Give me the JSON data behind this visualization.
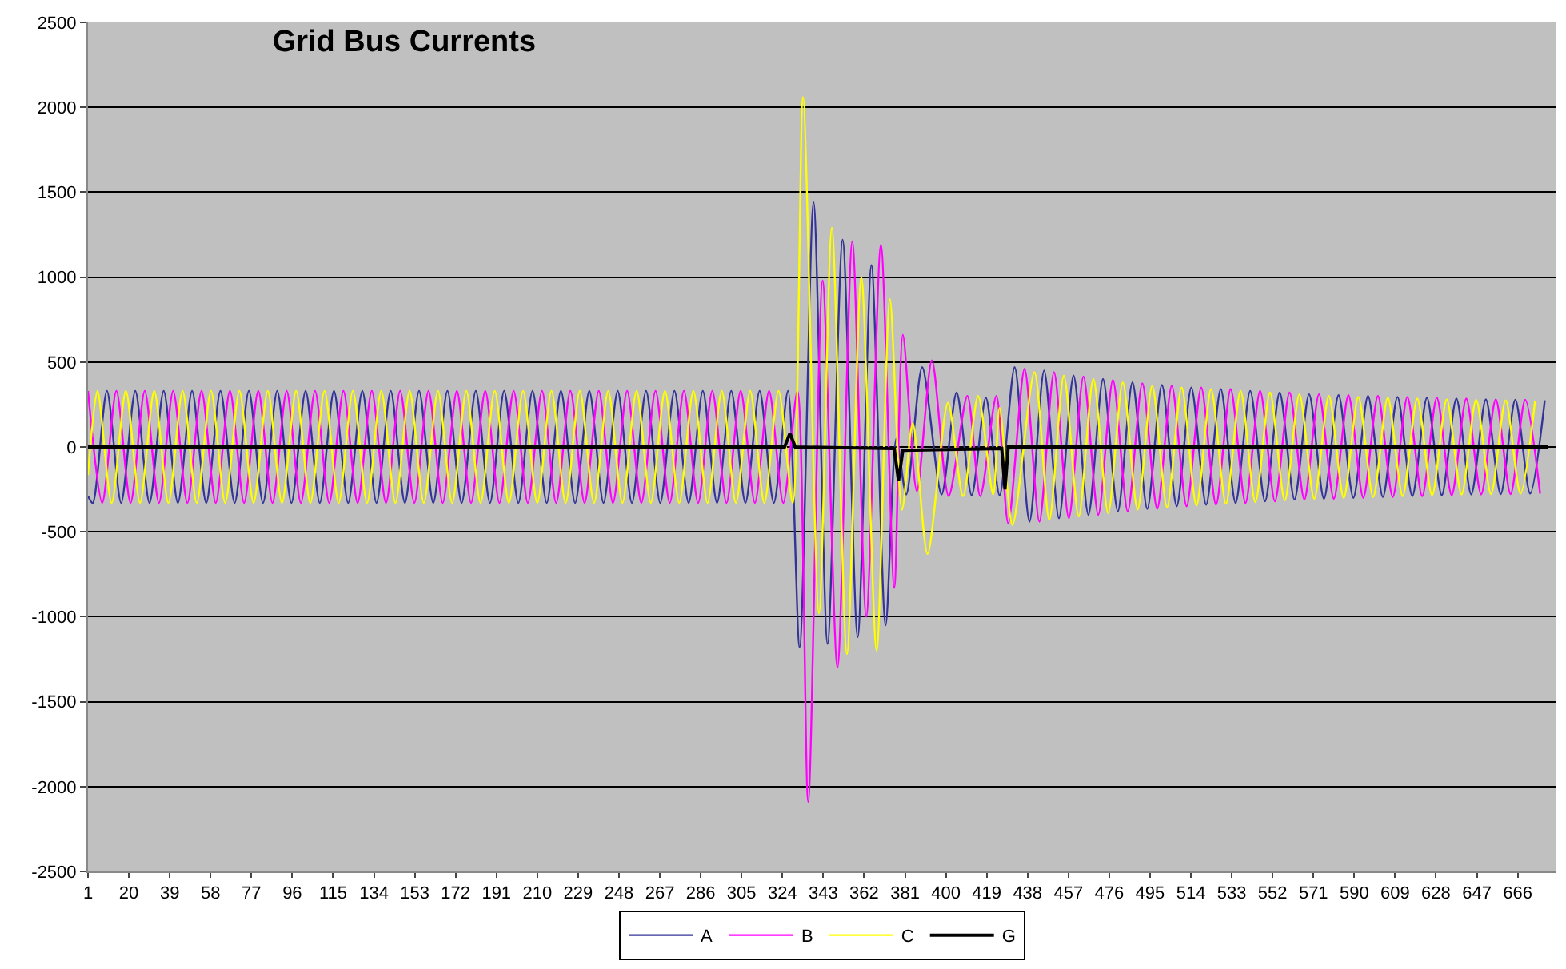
{
  "chart_data": {
    "type": "line",
    "title": "Grid Bus Currents",
    "xlim": [
      1,
      684
    ],
    "ylim": [
      -2500,
      2500
    ],
    "xticks": [
      1,
      20,
      39,
      58,
      77,
      96,
      115,
      134,
      153,
      172,
      191,
      210,
      229,
      248,
      267,
      286,
      305,
      324,
      343,
      362,
      381,
      400,
      419,
      438,
      457,
      476,
      495,
      514,
      533,
      552,
      571,
      590,
      609,
      628,
      647,
      666
    ],
    "yticks": [
      -2500,
      -2000,
      -1500,
      -1000,
      -500,
      0,
      500,
      1000,
      1500,
      2000,
      2500
    ],
    "grid": "y",
    "legend": "bottom",
    "series": [
      {
        "name": "A",
        "color": "#333399",
        "x": [
          1,
          3.2,
          9.8,
          16.4,
          23,
          29.6,
          36.2,
          42.8,
          49.4,
          56,
          62.6,
          69.2,
          75.8,
          82.4,
          89,
          95.6,
          102.2,
          108.8,
          115.4,
          122,
          128.6,
          135.2,
          141.8,
          148.4,
          155,
          161.6,
          168.2,
          174.8,
          181.4,
          188,
          194.6,
          201.2,
          207.8,
          214.4,
          221,
          227.6,
          234.2,
          240.8,
          247.4,
          254,
          260.6,
          267.2,
          273.8,
          280.4,
          287,
          293.6,
          300.2,
          306.8,
          313.4,
          320,
          326.6,
          332,
          338.5,
          345,
          352,
          359,
          365.4,
          372,
          377,
          381.6,
          389,
          398,
          405,
          412,
          418.6,
          425,
          432,
          438.9,
          445.7,
          452.6,
          459.4,
          466.3,
          473.1,
          480,
          486.8,
          493.7,
          500.5,
          507.4,
          514.2,
          521.1,
          527.9,
          534.8,
          541.6,
          548.5,
          555.3,
          562.2,
          569,
          575.9,
          582.7,
          589.6,
          596.4,
          603.3,
          610.1,
          617,
          623.8,
          630.7,
          637.5,
          644.4,
          651.2,
          658.1,
          664.9,
          671.8,
          678.6
        ],
        "values": [
          -290,
          -330,
          330,
          -330,
          330,
          -330,
          330,
          -330,
          330,
          -330,
          330,
          -330,
          330,
          -330,
          330,
          -330,
          330,
          -330,
          330,
          -330,
          330,
          -330,
          330,
          -330,
          330,
          -330,
          330,
          -330,
          330,
          -330,
          330,
          -330,
          330,
          -330,
          330,
          -330,
          330,
          -330,
          330,
          -330,
          330,
          -330,
          330,
          -330,
          330,
          -330,
          330,
          -330,
          330,
          -330,
          330,
          -1180,
          1440,
          -1160,
          1220,
          -1120,
          1070,
          -1050,
          50,
          -280,
          470,
          -280,
          320,
          -285,
          290,
          -285,
          470,
          -440,
          450,
          -420,
          420,
          -400,
          400,
          -380,
          380,
          -365,
          365,
          -350,
          350,
          -340,
          340,
          -330,
          330,
          -320,
          320,
          -310,
          310,
          -305,
          305,
          -300,
          300,
          -295,
          295,
          -290,
          290,
          -285,
          285,
          -280,
          280,
          -278,
          278,
          -275,
          275
        ]
      },
      {
        "name": "B",
        "color": "#ff00ff",
        "x": [
          1,
          7.6,
          14.2,
          20.8,
          27.4,
          34,
          40.6,
          47.2,
          53.8,
          60.4,
          67,
          73.6,
          80.2,
          86.8,
          93.4,
          100,
          106.6,
          113.2,
          119.8,
          126.4,
          133,
          139.6,
          146.2,
          152.8,
          159.4,
          166,
          172.6,
          179.2,
          185.8,
          192.4,
          199,
          205.6,
          212.2,
          218.8,
          225.4,
          232,
          238.6,
          245.2,
          251.8,
          258.4,
          265,
          271.6,
          278.2,
          284.8,
          291.4,
          298,
          304.6,
          311.2,
          317.8,
          324.4,
          331,
          336,
          342.7,
          349.6,
          356.5,
          363,
          369.8,
          376,
          380,
          386.5,
          393.5,
          401.3,
          410,
          416,
          423.5,
          429,
          436.6,
          443.5,
          450.3,
          457.2,
          464,
          470.9,
          477.7,
          484.6,
          491.4,
          498.3,
          505.1,
          512,
          518.8,
          525.7,
          532.5,
          539.4,
          546.2,
          553.1,
          559.9,
          566.8,
          573.6,
          580.5,
          587.3,
          594.2,
          601,
          607.9,
          614.7,
          621.6,
          628.4,
          635.3,
          642.1,
          649,
          655.8,
          662.7,
          669.5,
          676.4
        ],
        "values": [
          330,
          -330,
          330,
          -330,
          330,
          -330,
          330,
          -330,
          330,
          -330,
          330,
          -330,
          330,
          -330,
          330,
          -330,
          330,
          -330,
          330,
          -330,
          330,
          -330,
          330,
          -330,
          330,
          -330,
          330,
          -330,
          330,
          -330,
          330,
          -330,
          330,
          -330,
          330,
          -330,
          330,
          -330,
          330,
          -330,
          330,
          -330,
          330,
          -330,
          330,
          -330,
          330,
          -330,
          330,
          -330,
          330,
          -2090,
          980,
          -1300,
          1210,
          -1000,
          1190,
          -830,
          660,
          -260,
          510,
          -290,
          300,
          -290,
          300,
          -450,
          460,
          -440,
          440,
          -420,
          415,
          -400,
          395,
          -380,
          375,
          -365,
          360,
          -350,
          350,
          -340,
          340,
          -330,
          330,
          -320,
          320,
          -310,
          310,
          -305,
          305,
          -300,
          300,
          -295,
          295,
          -290,
          290,
          -285,
          285,
          -280,
          280,
          -278,
          278,
          -275
        ]
      },
      {
        "name": "C",
        "color": "#ffff00",
        "x": [
          1,
          5.4,
          12,
          18.6,
          25.2,
          31.8,
          38.4,
          45,
          51.6,
          58.2,
          64.8,
          71.4,
          78,
          84.6,
          91.2,
          97.8,
          104.4,
          111,
          117.6,
          124.2,
          130.8,
          137.4,
          144,
          150.6,
          157.2,
          163.8,
          170.4,
          177,
          183.6,
          190.2,
          196.8,
          203.4,
          210,
          216.6,
          223.2,
          229.8,
          236.4,
          243,
          249.6,
          256.2,
          262.8,
          269.4,
          276,
          282.6,
          289.2,
          295.8,
          302.4,
          309,
          315.6,
          322.2,
          328.8,
          333.6,
          341,
          347,
          354,
          360.7,
          367.8,
          374,
          379.6,
          384.6,
          391.5,
          401,
          408,
          415,
          422,
          425,
          431,
          441.2,
          448.1,
          454.9,
          461.8,
          468.6,
          475.5,
          482.3,
          489.2,
          496,
          502.9,
          509.7,
          516.6,
          523.4,
          530.3,
          537.1,
          544,
          550.8,
          557.7,
          564.5,
          571.4,
          578.2,
          585.1,
          591.9,
          598.8,
          605.6,
          612.5,
          619.3,
          626.2,
          633,
          639.9,
          646.7,
          653.6,
          660.4,
          667.3,
          674.1
        ],
        "values": [
          -165,
          330,
          -330,
          330,
          -330,
          330,
          -330,
          330,
          -330,
          330,
          -330,
          330,
          -330,
          330,
          -330,
          330,
          -330,
          330,
          -330,
          330,
          -330,
          330,
          -330,
          330,
          -330,
          330,
          -330,
          330,
          -330,
          330,
          -330,
          330,
          -330,
          330,
          -330,
          330,
          -330,
          330,
          -330,
          330,
          -330,
          330,
          -330,
          330,
          -330,
          330,
          -330,
          330,
          -330,
          330,
          -330,
          2060,
          -980,
          1290,
          -1220,
          1000,
          -1200,
          870,
          -370,
          140,
          -630,
          260,
          -290,
          300,
          -280,
          230,
          -460,
          440,
          -430,
          420,
          -410,
          400,
          -390,
          380,
          -370,
          360,
          -355,
          350,
          -345,
          340,
          -335,
          330,
          -325,
          320,
          -315,
          310,
          -305,
          300,
          -300,
          295,
          -295,
          290,
          -290,
          285,
          -285,
          280,
          -280,
          278,
          -278,
          275,
          -275,
          272
        ]
      },
      {
        "name": "G",
        "color": "#000000",
        "x": [
          1,
          325,
          327.5,
          330,
          376,
          378,
          380,
          426,
          427.5,
          429,
          680
        ],
        "values": [
          0,
          0,
          80,
          0,
          -10,
          -200,
          -20,
          -10,
          -250,
          0,
          0
        ]
      }
    ]
  }
}
